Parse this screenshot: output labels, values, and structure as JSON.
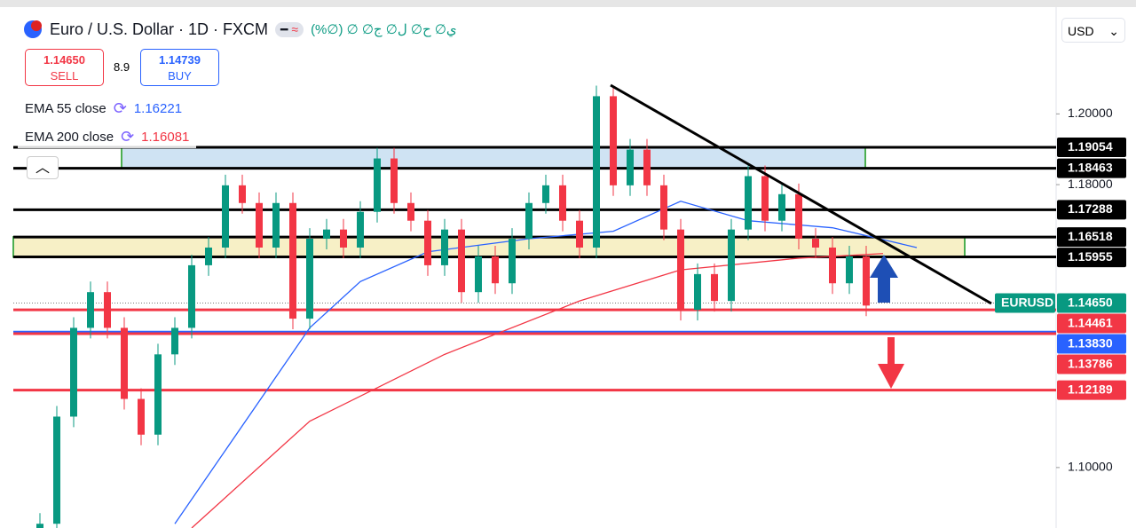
{
  "header": {
    "symbol": "Euro / U.S. Dollar · 1D · FXCM",
    "ohlc": "ي∅ ح∅ ل∅ ج∅ ∅ (∅%)",
    "currency": "USD"
  },
  "trade": {
    "sell_price": "1.14650",
    "sell_label": "SELL",
    "spread": "8.9",
    "buy_price": "1.14739",
    "buy_label": "BUY"
  },
  "indicators": [
    {
      "name": "EMA 55 close",
      "value": "1.16221",
      "color": "#2962ff"
    },
    {
      "name": "EMA 200 close",
      "value": "1.16081",
      "color": "#f23645"
    }
  ],
  "price_axis": {
    "ylim": [
      1.0829,
      1.2302
    ],
    "ticks": [
      {
        "value": 1.2,
        "label": "1.20000"
      },
      {
        "value": 1.18,
        "label": "1.18000"
      },
      {
        "value": 1.1,
        "label": "1.10000"
      }
    ]
  },
  "levels": [
    {
      "value": 1.19054,
      "label": "1.19054",
      "color": "#000000"
    },
    {
      "value": 1.18463,
      "label": "1.18463",
      "color": "#000000"
    },
    {
      "value": 1.17288,
      "label": "1.17288",
      "color": "#000000"
    },
    {
      "value": 1.16518,
      "label": "1.16518",
      "color": "#000000"
    },
    {
      "value": 1.15955,
      "label": "1.15955",
      "color": "#000000"
    },
    {
      "value": 1.14461,
      "label": "1.14461",
      "color": "#f23645"
    },
    {
      "value": 1.1383,
      "label": "1.13830",
      "color": "#2962ff"
    },
    {
      "value": 1.13786,
      "label": "1.13786",
      "color": "#f23645"
    },
    {
      "value": 1.12189,
      "label": "1.12189",
      "color": "#f23645"
    }
  ],
  "current": {
    "symbol": "EURUSD",
    "value": 1.1465,
    "label": "1.14650",
    "color": "#089981"
  },
  "candles": {
    "up_color": "#089981",
    "down_color": "#f23645",
    "ohlc": [
      [
        1.08,
        1.0871,
        1.077,
        1.0841
      ],
      [
        1.0841,
        1.1174,
        1.0811,
        1.1144
      ],
      [
        1.1144,
        1.1425,
        1.1114,
        1.1395
      ],
      [
        1.1395,
        1.1526,
        1.1365,
        1.1496
      ],
      [
        1.1496,
        1.1526,
        1.1365,
        1.1395
      ],
      [
        1.1395,
        1.1425,
        1.1164,
        1.1194
      ],
      [
        1.1194,
        1.1224,
        1.1063,
        1.1093
      ],
      [
        1.1093,
        1.135,
        1.1063,
        1.132
      ],
      [
        1.132,
        1.1425,
        1.129,
        1.1395
      ],
      [
        1.1395,
        1.1602,
        1.1365,
        1.1572
      ],
      [
        1.1572,
        1.1652,
        1.1542,
        1.1622
      ],
      [
        1.1622,
        1.1828,
        1.1592,
        1.1798
      ],
      [
        1.1798,
        1.1828,
        1.1718,
        1.1748
      ],
      [
        1.1748,
        1.1778,
        1.1592,
        1.1622
      ],
      [
        1.1622,
        1.1778,
        1.1592,
        1.1748
      ],
      [
        1.1748,
        1.1778,
        1.1391,
        1.1421
      ],
      [
        1.1421,
        1.1677,
        1.1391,
        1.1647
      ],
      [
        1.1647,
        1.1703,
        1.1617,
        1.1673
      ],
      [
        1.1673,
        1.1703,
        1.1592,
        1.1622
      ],
      [
        1.1622,
        1.1753,
        1.1592,
        1.1723
      ],
      [
        1.1723,
        1.1904,
        1.1693,
        1.1874
      ],
      [
        1.1874,
        1.1904,
        1.1718,
        1.1748
      ],
      [
        1.1748,
        1.1778,
        1.1668,
        1.1698
      ],
      [
        1.1698,
        1.1728,
        1.1542,
        1.1572
      ],
      [
        1.1572,
        1.1703,
        1.1542,
        1.1673
      ],
      [
        1.1673,
        1.1703,
        1.1466,
        1.1496
      ],
      [
        1.1496,
        1.1627,
        1.1466,
        1.1597
      ],
      [
        1.1597,
        1.1627,
        1.1491,
        1.1521
      ],
      [
        1.1521,
        1.1677,
        1.1491,
        1.1647
      ],
      [
        1.1647,
        1.1778,
        1.1617,
        1.1748
      ],
      [
        1.1748,
        1.1828,
        1.1718,
        1.1798
      ],
      [
        1.1798,
        1.1828,
        1.1668,
        1.1698
      ],
      [
        1.1698,
        1.1728,
        1.1592,
        1.1622
      ],
      [
        1.1622,
        1.208,
        1.1592,
        1.205
      ],
      [
        1.205,
        1.208,
        1.1768,
        1.1798
      ],
      [
        1.1798,
        1.1929,
        1.1768,
        1.1899
      ],
      [
        1.1899,
        1.1929,
        1.1768,
        1.1798
      ],
      [
        1.1798,
        1.1828,
        1.1643,
        1.1673
      ],
      [
        1.1673,
        1.1703,
        1.1416,
        1.1446
      ],
      [
        1.1446,
        1.1577,
        1.1416,
        1.1547
      ],
      [
        1.1547,
        1.1577,
        1.1441,
        1.1471
      ],
      [
        1.1471,
        1.1703,
        1.1441,
        1.1673
      ],
      [
        1.1673,
        1.1854,
        1.1643,
        1.1824
      ],
      [
        1.1824,
        1.1854,
        1.1668,
        1.1698
      ],
      [
        1.1698,
        1.1803,
        1.1668,
        1.1773
      ],
      [
        1.1773,
        1.1803,
        1.1617,
        1.1647
      ],
      [
        1.1647,
        1.1677,
        1.1592,
        1.1622
      ],
      [
        1.1622,
        1.1652,
        1.1491,
        1.1521
      ],
      [
        1.1521,
        1.1627,
        1.1491,
        1.1597
      ],
      [
        1.1597,
        1.1627,
        1.1428,
        1.1458
      ]
    ]
  },
  "ema55": {
    "x": [
      8,
      16,
      19,
      23,
      29,
      34,
      38,
      42,
      47,
      52
    ],
    "values": [
      1.0841,
      1.1395,
      1.1526,
      1.161,
      1.1647,
      1.1668,
      1.1753,
      1.1698,
      1.1678,
      1.1622
    ]
  },
  "ema200": {
    "x": [
      9,
      16,
      24,
      32,
      38,
      45,
      50
    ],
    "values": [
      1.0829,
      1.1131,
      1.132,
      1.1471,
      1.1559,
      1.1592,
      1.1605
    ]
  }
}
